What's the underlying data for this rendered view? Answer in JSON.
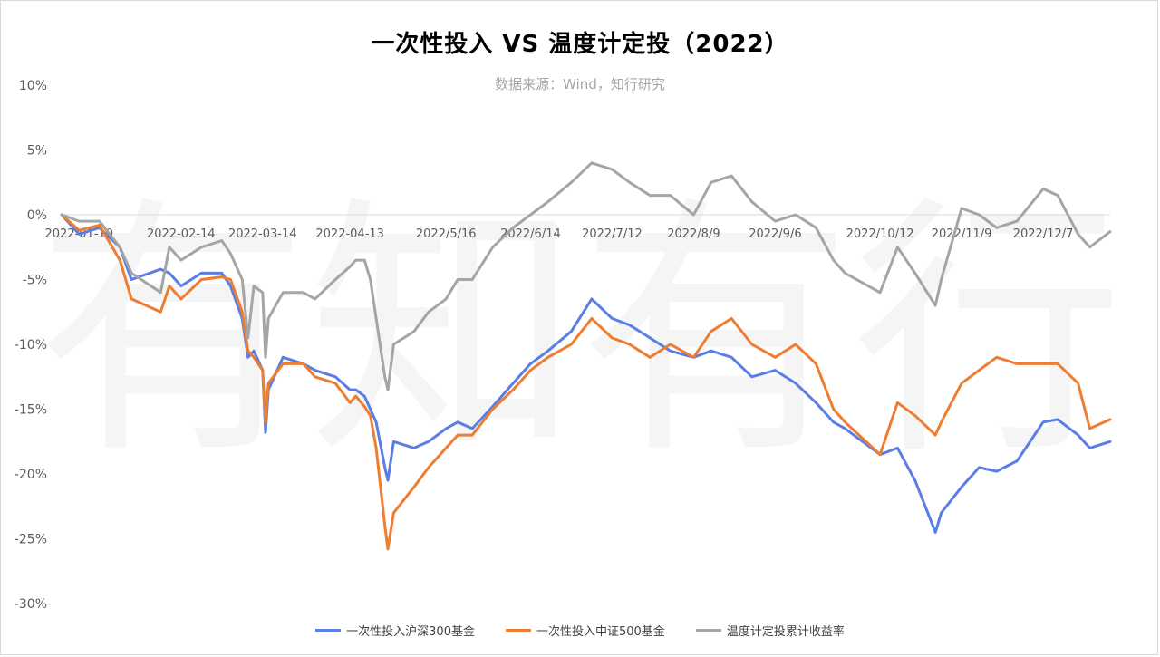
{
  "chart_data": {
    "type": "line",
    "title": "一次性投入 VS 温度计定投（2022）",
    "subtitle": "数据来源：Wind，知行研究",
    "y_unit": "%",
    "ylim": [
      -30,
      10
    ],
    "y_ticks": [
      10,
      5,
      0,
      -5,
      -10,
      -15,
      -20,
      -25,
      -30
    ],
    "y_tick_labels": [
      "10%",
      "5%",
      "0%",
      "-5%",
      "-10%",
      "-15%",
      "-20%",
      "-25%",
      "-30%"
    ],
    "x_range": [
      "2022-01-04",
      "2022-12-30"
    ],
    "x_tick_dates": [
      "2022-01-10",
      "2022-02-14",
      "2022-03-14",
      "2022-04-13",
      "2022-05-16",
      "2022-06-14",
      "2022-07-12",
      "2022-08-09",
      "2022-09-06",
      "2022-10-12",
      "2022-11-09",
      "2022-12-07"
    ],
    "x_tick_labels": [
      "2022-01-10",
      "2022-02-14",
      "2022-03-14",
      "2022-04-13",
      "2022/5/16",
      "2022/6/14",
      "2022/7/12",
      "2022/8/9",
      "2022/9/6",
      "2022/10/12",
      "2022/11/9",
      "2022/12/7"
    ],
    "legend_position": "bottom",
    "grid": false,
    "watermark": "有知有行",
    "series": [
      {
        "name": "一次性投入沪深300基金",
        "color": "#5b7ee5",
        "points": [
          [
            "2022-01-04",
            0
          ],
          [
            "2022-01-10",
            -1.5
          ],
          [
            "2022-01-17",
            -1.0
          ],
          [
            "2022-01-24",
            -2.5
          ],
          [
            "2022-01-28",
            -5
          ],
          [
            "2022-02-07",
            -4.2
          ],
          [
            "2022-02-10",
            -4.5
          ],
          [
            "2022-02-14",
            -5.5
          ],
          [
            "2022-02-21",
            -4.5
          ],
          [
            "2022-02-28",
            -4.5
          ],
          [
            "2022-03-03",
            -5.5
          ],
          [
            "2022-03-07",
            -8
          ],
          [
            "2022-03-09",
            -11
          ],
          [
            "2022-03-11",
            -10.5
          ],
          [
            "2022-03-14",
            -12
          ],
          [
            "2022-03-15",
            -16.8
          ],
          [
            "2022-03-16",
            -13.5
          ],
          [
            "2022-03-21",
            -11
          ],
          [
            "2022-03-28",
            -11.5
          ],
          [
            "2022-04-01",
            -12
          ],
          [
            "2022-04-08",
            -12.5
          ],
          [
            "2022-04-13",
            -13.5
          ],
          [
            "2022-04-15",
            -13.5
          ],
          [
            "2022-04-18",
            -14
          ],
          [
            "2022-04-20",
            -15
          ],
          [
            "2022-04-22",
            -16
          ],
          [
            "2022-04-25",
            -19.5
          ],
          [
            "2022-04-26",
            -20.5
          ],
          [
            "2022-04-28",
            -17.5
          ],
          [
            "2022-05-05",
            -18
          ],
          [
            "2022-05-10",
            -17.5
          ],
          [
            "2022-05-16",
            -16.5
          ],
          [
            "2022-05-20",
            -16
          ],
          [
            "2022-05-25",
            -16.5
          ],
          [
            "2022-06-01",
            -14.8
          ],
          [
            "2022-06-08",
            -13
          ],
          [
            "2022-06-14",
            -11.5
          ],
          [
            "2022-06-20",
            -10.5
          ],
          [
            "2022-06-28",
            -9
          ],
          [
            "2022-07-05",
            -6.5
          ],
          [
            "2022-07-12",
            -8
          ],
          [
            "2022-07-18",
            -8.5
          ],
          [
            "2022-07-25",
            -9.5
          ],
          [
            "2022-08-01",
            -10.5
          ],
          [
            "2022-08-09",
            -11
          ],
          [
            "2022-08-15",
            -10.5
          ],
          [
            "2022-08-22",
            -11
          ],
          [
            "2022-08-29",
            -12.5
          ],
          [
            "2022-09-06",
            -12
          ],
          [
            "2022-09-13",
            -13
          ],
          [
            "2022-09-20",
            -14.5
          ],
          [
            "2022-09-26",
            -16
          ],
          [
            "2022-09-30",
            -16.5
          ],
          [
            "2022-10-12",
            -18.5
          ],
          [
            "2022-10-18",
            -18
          ],
          [
            "2022-10-24",
            -20.5
          ],
          [
            "2022-10-31",
            -24.5
          ],
          [
            "2022-11-02",
            -23
          ],
          [
            "2022-11-09",
            -21
          ],
          [
            "2022-11-15",
            -19.5
          ],
          [
            "2022-11-21",
            -19.8
          ],
          [
            "2022-11-28",
            -19
          ],
          [
            "2022-12-07",
            -16
          ],
          [
            "2022-12-12",
            -15.8
          ],
          [
            "2022-12-19",
            -17
          ],
          [
            "2022-12-23",
            -18
          ],
          [
            "2022-12-30",
            -17.5
          ]
        ]
      },
      {
        "name": "一次性投入中证500基金",
        "color": "#ed7d31",
        "points": [
          [
            "2022-01-04",
            0
          ],
          [
            "2022-01-10",
            -1.2
          ],
          [
            "2022-01-17",
            -0.8
          ],
          [
            "2022-01-24",
            -3.5
          ],
          [
            "2022-01-28",
            -6.5
          ],
          [
            "2022-02-07",
            -7.5
          ],
          [
            "2022-02-10",
            -5.5
          ],
          [
            "2022-02-14",
            -6.5
          ],
          [
            "2022-02-21",
            -5
          ],
          [
            "2022-02-28",
            -4.8
          ],
          [
            "2022-03-03",
            -5
          ],
          [
            "2022-03-07",
            -7.5
          ],
          [
            "2022-03-09",
            -10.5
          ],
          [
            "2022-03-11",
            -11
          ],
          [
            "2022-03-14",
            -12
          ],
          [
            "2022-03-15",
            -16
          ],
          [
            "2022-03-16",
            -13
          ],
          [
            "2022-03-21",
            -11.5
          ],
          [
            "2022-03-28",
            -11.5
          ],
          [
            "2022-04-01",
            -12.5
          ],
          [
            "2022-04-08",
            -13
          ],
          [
            "2022-04-13",
            -14.5
          ],
          [
            "2022-04-15",
            -14
          ],
          [
            "2022-04-18",
            -14.8
          ],
          [
            "2022-04-20",
            -15.5
          ],
          [
            "2022-04-22",
            -18
          ],
          [
            "2022-04-25",
            -24
          ],
          [
            "2022-04-26",
            -25.8
          ],
          [
            "2022-04-28",
            -23
          ],
          [
            "2022-05-05",
            -21
          ],
          [
            "2022-05-10",
            -19.5
          ],
          [
            "2022-05-16",
            -18
          ],
          [
            "2022-05-20",
            -17
          ],
          [
            "2022-05-25",
            -17
          ],
          [
            "2022-06-01",
            -15
          ],
          [
            "2022-06-08",
            -13.5
          ],
          [
            "2022-06-14",
            -12
          ],
          [
            "2022-06-20",
            -11
          ],
          [
            "2022-06-28",
            -10
          ],
          [
            "2022-07-05",
            -8
          ],
          [
            "2022-07-12",
            -9.5
          ],
          [
            "2022-07-18",
            -10
          ],
          [
            "2022-07-25",
            -11
          ],
          [
            "2022-08-01",
            -10
          ],
          [
            "2022-08-09",
            -11
          ],
          [
            "2022-08-15",
            -9
          ],
          [
            "2022-08-22",
            -8
          ],
          [
            "2022-08-29",
            -10
          ],
          [
            "2022-09-06",
            -11
          ],
          [
            "2022-09-13",
            -10
          ],
          [
            "2022-09-20",
            -11.5
          ],
          [
            "2022-09-26",
            -15
          ],
          [
            "2022-09-30",
            -16
          ],
          [
            "2022-10-12",
            -18.5
          ],
          [
            "2022-10-18",
            -14.5
          ],
          [
            "2022-10-24",
            -15.5
          ],
          [
            "2022-10-31",
            -17
          ],
          [
            "2022-11-02",
            -16
          ],
          [
            "2022-11-09",
            -13
          ],
          [
            "2022-11-15",
            -12
          ],
          [
            "2022-11-21",
            -11
          ],
          [
            "2022-11-28",
            -11.5
          ],
          [
            "2022-12-07",
            -11.5
          ],
          [
            "2022-12-12",
            -11.5
          ],
          [
            "2022-12-19",
            -13
          ],
          [
            "2022-12-23",
            -16.5
          ],
          [
            "2022-12-30",
            -15.8
          ]
        ]
      },
      {
        "name": "温度计定投累计收益率",
        "color": "#a5a5a5",
        "points": [
          [
            "2022-01-04",
            0
          ],
          [
            "2022-01-10",
            -0.5
          ],
          [
            "2022-01-17",
            -0.5
          ],
          [
            "2022-01-24",
            -2.5
          ],
          [
            "2022-01-28",
            -4.5
          ],
          [
            "2022-02-07",
            -6
          ],
          [
            "2022-02-10",
            -2.5
          ],
          [
            "2022-02-14",
            -3.5
          ],
          [
            "2022-02-21",
            -2.5
          ],
          [
            "2022-02-28",
            -2
          ],
          [
            "2022-03-03",
            -3
          ],
          [
            "2022-03-07",
            -5
          ],
          [
            "2022-03-09",
            -9.5
          ],
          [
            "2022-03-11",
            -5.5
          ],
          [
            "2022-03-14",
            -6
          ],
          [
            "2022-03-15",
            -11
          ],
          [
            "2022-03-16",
            -8
          ],
          [
            "2022-03-21",
            -6
          ],
          [
            "2022-03-28",
            -6
          ],
          [
            "2022-04-01",
            -6.5
          ],
          [
            "2022-04-08",
            -5
          ],
          [
            "2022-04-13",
            -4
          ],
          [
            "2022-04-15",
            -3.5
          ],
          [
            "2022-04-18",
            -3.5
          ],
          [
            "2022-04-20",
            -5
          ],
          [
            "2022-04-22",
            -8
          ],
          [
            "2022-04-25",
            -12.5
          ],
          [
            "2022-04-26",
            -13.5
          ],
          [
            "2022-04-28",
            -10
          ],
          [
            "2022-05-05",
            -9
          ],
          [
            "2022-05-10",
            -7.5
          ],
          [
            "2022-05-16",
            -6.5
          ],
          [
            "2022-05-20",
            -5
          ],
          [
            "2022-05-25",
            -5
          ],
          [
            "2022-06-01",
            -2.5
          ],
          [
            "2022-06-08",
            -1
          ],
          [
            "2022-06-14",
            0
          ],
          [
            "2022-06-20",
            1
          ],
          [
            "2022-06-28",
            2.5
          ],
          [
            "2022-07-05",
            4
          ],
          [
            "2022-07-12",
            3.5
          ],
          [
            "2022-07-18",
            2.5
          ],
          [
            "2022-07-25",
            1.5
          ],
          [
            "2022-08-01",
            1.5
          ],
          [
            "2022-08-09",
            0
          ],
          [
            "2022-08-15",
            2.5
          ],
          [
            "2022-08-22",
            3
          ],
          [
            "2022-08-29",
            1
          ],
          [
            "2022-09-06",
            -0.5
          ],
          [
            "2022-09-13",
            0
          ],
          [
            "2022-09-20",
            -1
          ],
          [
            "2022-09-26",
            -3.5
          ],
          [
            "2022-09-30",
            -4.5
          ],
          [
            "2022-10-12",
            -6
          ],
          [
            "2022-10-18",
            -2.5
          ],
          [
            "2022-10-24",
            -4.5
          ],
          [
            "2022-10-31",
            -7
          ],
          [
            "2022-11-02",
            -5
          ],
          [
            "2022-11-09",
            0.5
          ],
          [
            "2022-11-15",
            0
          ],
          [
            "2022-11-21",
            -1
          ],
          [
            "2022-11-28",
            -0.5
          ],
          [
            "2022-12-07",
            2
          ],
          [
            "2022-12-12",
            1.5
          ],
          [
            "2022-12-19",
            -1.5
          ],
          [
            "2022-12-23",
            -2.5
          ],
          [
            "2022-12-30",
            -1.3
          ]
        ]
      }
    ]
  }
}
